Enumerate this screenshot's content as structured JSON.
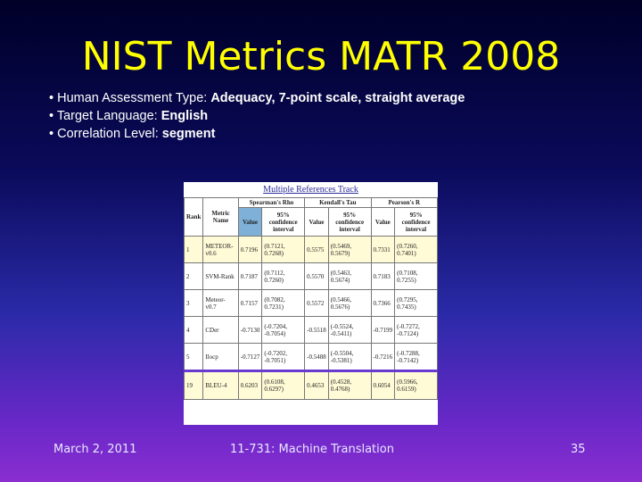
{
  "title": "NIST Metrics MATR 2008",
  "bullets": [
    {
      "label": "Human Assessment Type: ",
      "value": "Adequacy, 7-point scale, straight average"
    },
    {
      "label": "Target Language: ",
      "value": "English"
    },
    {
      "label": "Correlation Level: ",
      "value": "segment"
    }
  ],
  "table": {
    "caption": "Multiple References Track",
    "headers": {
      "rank": "Rank",
      "metric": "Metric Name",
      "spearman": "Spearman's Rho",
      "kendall": "Kendall's Tau",
      "pearson": "Pearson's R",
      "value": "Value",
      "ci": "95% confidence interval"
    },
    "rows": [
      {
        "rank": "1",
        "metric": "METEOR-v0.6",
        "s": "0.7196",
        "sci": "(0.7121, 0.7268)",
        "k": "0.5575",
        "kci": "(0.5469, 0.5679)",
        "p": "0.7331",
        "pci": "(0.7260, 0.7401)"
      },
      {
        "rank": "2",
        "metric": "SVM-Rank",
        "s": "0.7187",
        "sci": "(0.7112, 0.7260)",
        "k": "0.5570",
        "kci": "(0.5463, 0.5674)",
        "p": "0.7183",
        "pci": "(0.7108, 0.7255)"
      },
      {
        "rank": "3",
        "metric": "Meteor-v0.7",
        "s": "0.7157",
        "sci": "(0.7082, 0.7231)",
        "k": "0.5572",
        "kci": "(0.5466, 0.5676)",
        "p": "0.7366",
        "pci": "(0.7295, 0.7435)"
      },
      {
        "rank": "4",
        "metric": "CDer",
        "s": "-0.7130",
        "sci": "(-0.7204, -0.7054)",
        "k": "-0.5518",
        "kci": "(-0.5524, -0.5411)",
        "p": "-0.7199",
        "pci": "(-0.7272, -0.7124)"
      },
      {
        "rank": "5",
        "metric": "Ilocp",
        "s": "-0.7127",
        "sci": "(-0.7202, -0.7051)",
        "k": "-0.5488",
        "kci": "(-0.5504, -0.5381)",
        "p": "-0.7216",
        "pci": "(-0.7288, -0.7142)"
      },
      {
        "rank": "19",
        "metric": "BLEU-4",
        "s": "0.6203",
        "sci": "(0.6108, 0.6297)",
        "k": "0.4653",
        "kci": "(0.4528, 0.4768)",
        "p": "0.6054",
        "pci": "(0.5966, 0.6159)"
      }
    ]
  },
  "footer": {
    "date": "March 2, 2011",
    "course": "11-731: Machine Translation",
    "page": "35"
  }
}
